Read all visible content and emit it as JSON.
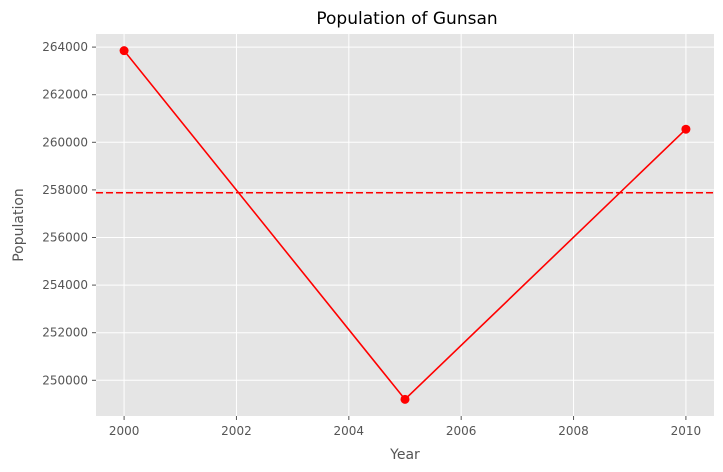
{
  "chart_data": {
    "type": "line",
    "title": "Population of Gunsan",
    "xlabel": "Year",
    "ylabel": "Population",
    "x": [
      2000,
      2005,
      2010
    ],
    "series": [
      {
        "values": [
          263850,
          249200,
          260550
        ],
        "color": "#ff0000",
        "marker": "circle"
      }
    ],
    "reference_line": {
      "y": 257880,
      "style": "dashed",
      "color": "#ff0000"
    },
    "xlim": [
      1999.5,
      2010.5
    ],
    "ylim": [
      248500,
      264550
    ],
    "xticks": [
      2000,
      2002,
      2004,
      2006,
      2008,
      2010
    ],
    "yticks": [
      250000,
      252000,
      254000,
      256000,
      258000,
      260000,
      262000,
      264000
    ],
    "grid": true,
    "legend": "none",
    "background": "#e5e5e5"
  }
}
